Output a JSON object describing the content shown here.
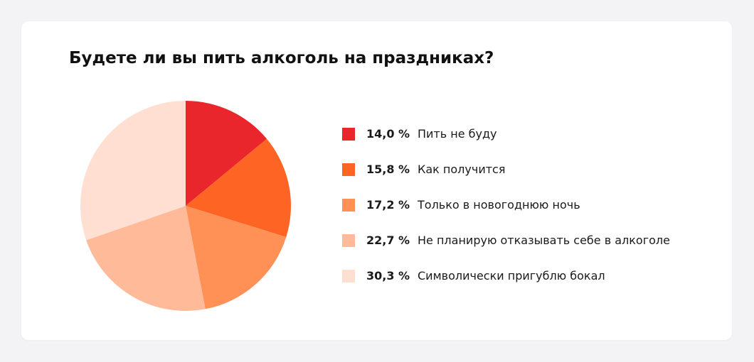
{
  "chart_data": {
    "type": "pie",
    "title": "Будете ли вы пить алкоголь на праздниках?",
    "slices": [
      {
        "label": "Пить не буду",
        "value": 14.0,
        "value_label": "14,0 %",
        "color": "#e8262b"
      },
      {
        "label": "Как получится",
        "value": 15.8,
        "value_label": "15,8 %",
        "color": "#fe6424"
      },
      {
        "label": "Только в новогоднюю ночь",
        "value": 17.2,
        "value_label": "17,2 %",
        "color": "#ff9157"
      },
      {
        "label": "Не планирую отказывать себе в алкоголе",
        "value": 22.7,
        "value_label": "22,7 %",
        "color": "#ffbb99"
      },
      {
        "label": "Символически пригублю бокал",
        "value": 30.3,
        "value_label": "30,3 %",
        "color": "#ffdfd2"
      }
    ],
    "start_angle": "12 o'clock",
    "direction": "clockwise",
    "legend_position": "right"
  }
}
